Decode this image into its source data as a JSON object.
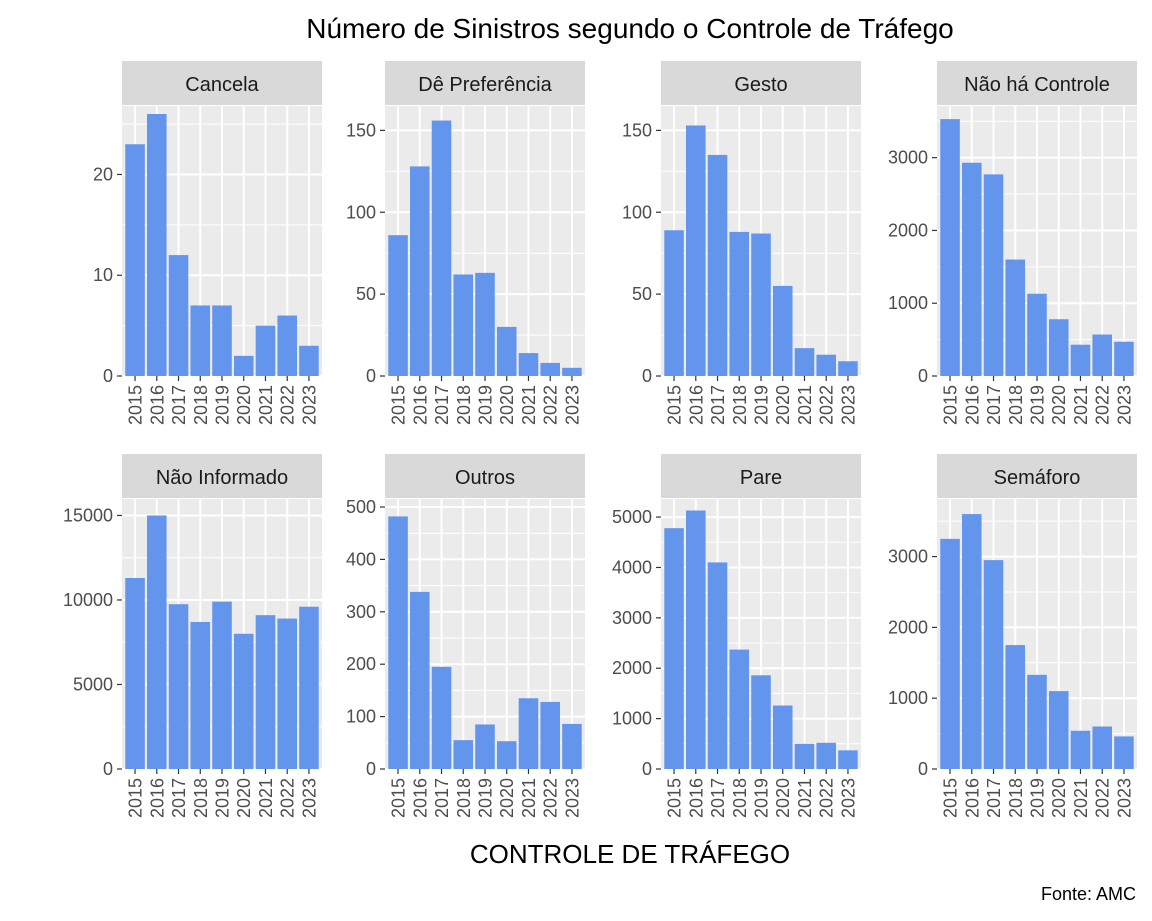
{
  "chart_data": {
    "type": "bar",
    "title": "Número de Sinistros segundo o Controle de Tráfego",
    "xlabel": "CONTROLE DE TRÁFEGO",
    "ylabel": "",
    "caption": "Fonte: AMC",
    "grid": true,
    "bar_color": "#6495ED",
    "panel_background": "#EBEBEB",
    "strip_background": "#D9D9D9",
    "categories": [
      "2015",
      "2016",
      "2017",
      "2018",
      "2019",
      "2020",
      "2021",
      "2022",
      "2023"
    ],
    "facets": [
      {
        "name": "Cancela",
        "values": [
          23,
          26,
          12,
          7,
          7,
          2,
          5,
          6,
          3
        ],
        "ylim": [
          0,
          26
        ],
        "yticks": [
          "0",
          "10",
          "20"
        ]
      },
      {
        "name": "Dê Preferência",
        "values": [
          86,
          128,
          156,
          62,
          63,
          30,
          14,
          8,
          5
        ],
        "ylim": [
          0,
          160
        ],
        "yticks": [
          "0",
          "50",
          "100",
          "150"
        ]
      },
      {
        "name": "Gesto",
        "values": [
          89,
          153,
          135,
          88,
          87,
          55,
          17,
          13,
          9
        ],
        "ylim": [
          0,
          160
        ],
        "yticks": [
          "0",
          "50",
          "100",
          "150"
        ]
      },
      {
        "name": "Não há Controle",
        "values": [
          3530,
          2930,
          2770,
          1600,
          1130,
          780,
          430,
          570,
          470
        ],
        "ylim": [
          0,
          3600
        ],
        "yticks": [
          "0",
          "1000",
          "2000",
          "3000"
        ]
      },
      {
        "name": "Não Informado",
        "values": [
          11300,
          15000,
          9750,
          8700,
          9900,
          8000,
          9100,
          8900,
          9600
        ],
        "ylim": [
          0,
          15500
        ],
        "yticks": [
          "0",
          "5000",
          "10000",
          "15000"
        ]
      },
      {
        "name": "Outros",
        "values": [
          482,
          338,
          195,
          55,
          85,
          53,
          135,
          128,
          86
        ],
        "ylim": [
          0,
          500
        ],
        "yticks": [
          "0",
          "100",
          "200",
          "300",
          "400",
          "500"
        ]
      },
      {
        "name": "Pare",
        "values": [
          4780,
          5130,
          4100,
          2370,
          1860,
          1260,
          500,
          520,
          370
        ],
        "ylim": [
          0,
          5200
        ],
        "yticks": [
          "0",
          "1000",
          "2000",
          "3000",
          "4000",
          "5000"
        ]
      },
      {
        "name": "Semáforo",
        "values": [
          3250,
          3600,
          2950,
          1750,
          1330,
          1100,
          540,
          600,
          460
        ],
        "ylim": [
          0,
          3700
        ],
        "yticks": [
          "0",
          "1000",
          "2000",
          "3000"
        ]
      }
    ]
  }
}
